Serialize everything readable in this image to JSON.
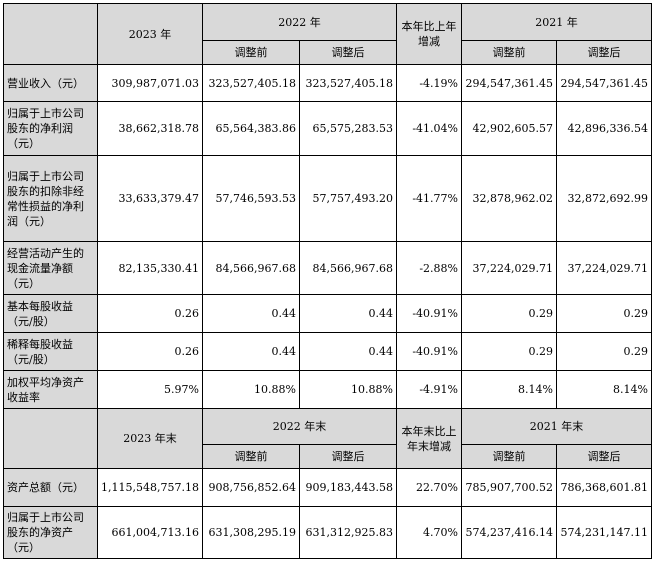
{
  "header1": {
    "y2023": "2023 年",
    "y2022": "2022 年",
    "change": "本年比上年增减",
    "y2021": "2021 年",
    "before": "调整前",
    "after": "调整后"
  },
  "rows1": [
    {
      "label": "营业收入（元）",
      "v2023": "309,987,071.03",
      "v2022_before": "323,527,405.18",
      "v2022_after": "323,527,405.18",
      "change": "-4.19%",
      "v2021_before": "294,547,361.45",
      "v2021_after": "294,547,361.45"
    },
    {
      "label": "归属于上市公司股东的净利润（元）",
      "v2023": "38,662,318.78",
      "v2022_before": "65,564,383.86",
      "v2022_after": "65,575,283.53",
      "change": "-41.04%",
      "v2021_before": "42,902,605.57",
      "v2021_after": "42,896,336.54"
    },
    {
      "label": "归属于上市公司股东的扣除非经常性损益的净利润（元）",
      "v2023": "33,633,379.47",
      "v2022_before": "57,746,593.53",
      "v2022_after": "57,757,493.20",
      "change": "-41.77%",
      "v2021_before": "32,878,962.02",
      "v2021_after": "32,872,692.99"
    },
    {
      "label": "经营活动产生的现金流量净额（元）",
      "v2023": "82,135,330.41",
      "v2022_before": "84,566,967.68",
      "v2022_after": "84,566,967.68",
      "change": "-2.88%",
      "v2021_before": "37,224,029.71",
      "v2021_after": "37,224,029.71"
    },
    {
      "label": "基本每股收益（元/股）",
      "v2023": "0.26",
      "v2022_before": "0.44",
      "v2022_after": "0.44",
      "change": "-40.91%",
      "v2021_before": "0.29",
      "v2021_after": "0.29"
    },
    {
      "label": "稀释每股收益（元/股）",
      "v2023": "0.26",
      "v2022_before": "0.44",
      "v2022_after": "0.44",
      "change": "-40.91%",
      "v2021_before": "0.29",
      "v2021_after": "0.29"
    },
    {
      "label": "加权平均净资产收益率",
      "v2023": "5.97%",
      "v2022_before": "10.88%",
      "v2022_after": "10.88%",
      "change": "-4.91%",
      "v2021_before": "8.14%",
      "v2021_after": "8.14%"
    }
  ],
  "header2": {
    "y2023": "2023 年末",
    "y2022": "2022 年末",
    "change": "本年末比上年末增减",
    "y2021": "2021 年末",
    "before": "调整前",
    "after": "调整后"
  },
  "rows2": [
    {
      "label": "资产总额（元）",
      "v2023": "1,115,548,757.18",
      "v2022_before": "908,756,852.64",
      "v2022_after": "909,183,443.58",
      "change": "22.70%",
      "v2021_before": "785,907,700.52",
      "v2021_after": "786,368,601.81"
    },
    {
      "label": "归属于上市公司股东的净资产（元）",
      "v2023": "661,004,713.16",
      "v2022_before": "631,308,295.19",
      "v2022_after": "631,312,925.83",
      "change": "4.70%",
      "v2021_before": "574,237,416.14",
      "v2021_after": "574,231,147.11"
    }
  ]
}
